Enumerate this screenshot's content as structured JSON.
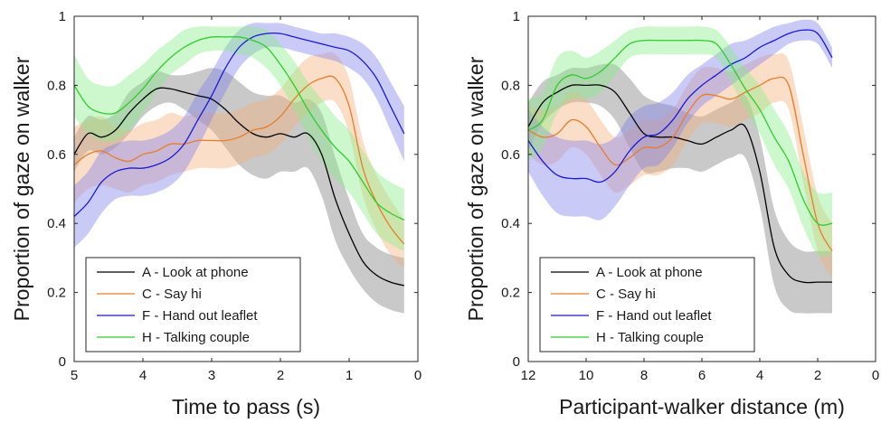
{
  "chart_data": [
    {
      "type": "line",
      "xlabel": "Time to pass (s)",
      "ylabel": "Proportion of gaze on walker",
      "xlim": [
        5,
        0
      ],
      "ylim": [
        0,
        1
      ],
      "x_reversed": true,
      "xticks": [
        5,
        4,
        3,
        2,
        1,
        0
      ],
      "yticks": [
        0,
        0.2,
        0.4,
        0.6,
        0.8,
        1
      ],
      "xtick_labels": [
        "5",
        "4",
        "3",
        "2",
        "1",
        "0"
      ],
      "ytick_labels": [
        "0",
        "0.2",
        "0.4",
        "0.6",
        "0.8",
        "1"
      ],
      "grid": false,
      "legend_position": "bottom-left",
      "series": [
        {
          "name": "A - Look at phone",
          "color": "#000000",
          "band_color": "#7f7f7f",
          "x": [
            5,
            4.8,
            4.6,
            4.4,
            4.2,
            4.0,
            3.8,
            3.6,
            3.4,
            3.2,
            3.0,
            2.8,
            2.6,
            2.4,
            2.2,
            2.0,
            1.8,
            1.6,
            1.4,
            1.2,
            1.0,
            0.8,
            0.6,
            0.4,
            0.2
          ],
          "values": [
            0.6,
            0.66,
            0.65,
            0.67,
            0.72,
            0.76,
            0.79,
            0.79,
            0.78,
            0.77,
            0.76,
            0.73,
            0.69,
            0.66,
            0.65,
            0.66,
            0.65,
            0.66,
            0.6,
            0.47,
            0.37,
            0.29,
            0.25,
            0.23,
            0.22
          ],
          "lower": [
            0.55,
            0.61,
            0.6,
            0.62,
            0.66,
            0.71,
            0.74,
            0.75,
            0.73,
            0.7,
            0.67,
            0.62,
            0.57,
            0.54,
            0.53,
            0.55,
            0.55,
            0.56,
            0.48,
            0.35,
            0.27,
            0.21,
            0.17,
            0.15,
            0.14
          ],
          "upper": [
            0.65,
            0.71,
            0.7,
            0.72,
            0.78,
            0.81,
            0.84,
            0.83,
            0.83,
            0.84,
            0.85,
            0.84,
            0.81,
            0.78,
            0.77,
            0.77,
            0.75,
            0.76,
            0.72,
            0.59,
            0.47,
            0.37,
            0.33,
            0.31,
            0.3
          ]
        },
        {
          "name": "C - Say hi",
          "color": "#e87d2a",
          "band_color": "#f5b07a",
          "x": [
            5,
            4.8,
            4.6,
            4.4,
            4.2,
            4.0,
            3.8,
            3.6,
            3.4,
            3.2,
            3.0,
            2.8,
            2.6,
            2.4,
            2.2,
            2.0,
            1.8,
            1.6,
            1.4,
            1.2,
            1.0,
            0.8,
            0.6,
            0.4,
            0.2
          ],
          "values": [
            0.57,
            0.6,
            0.61,
            0.59,
            0.58,
            0.6,
            0.61,
            0.63,
            0.63,
            0.64,
            0.64,
            0.64,
            0.65,
            0.67,
            0.68,
            0.71,
            0.76,
            0.8,
            0.82,
            0.82,
            0.74,
            0.56,
            0.46,
            0.39,
            0.34
          ],
          "lower": [
            0.46,
            0.5,
            0.51,
            0.5,
            0.49,
            0.51,
            0.52,
            0.54,
            0.55,
            0.56,
            0.56,
            0.56,
            0.57,
            0.59,
            0.6,
            0.63,
            0.68,
            0.72,
            0.75,
            0.75,
            0.66,
            0.48,
            0.38,
            0.31,
            0.27
          ],
          "upper": [
            0.68,
            0.7,
            0.71,
            0.68,
            0.67,
            0.69,
            0.7,
            0.72,
            0.71,
            0.72,
            0.72,
            0.72,
            0.73,
            0.75,
            0.76,
            0.79,
            0.84,
            0.88,
            0.89,
            0.89,
            0.82,
            0.64,
            0.54,
            0.47,
            0.41
          ]
        },
        {
          "name": "F - Hand out leaflet",
          "color": "#1a1ad4",
          "band_color": "#8080ec",
          "x": [
            5,
            4.8,
            4.6,
            4.4,
            4.2,
            4.0,
            3.8,
            3.6,
            3.4,
            3.2,
            3.0,
            2.8,
            2.6,
            2.4,
            2.2,
            2.0,
            1.8,
            1.6,
            1.4,
            1.2,
            1.0,
            0.8,
            0.6,
            0.4,
            0.2
          ],
          "values": [
            0.42,
            0.46,
            0.52,
            0.55,
            0.56,
            0.56,
            0.57,
            0.59,
            0.63,
            0.7,
            0.77,
            0.85,
            0.91,
            0.94,
            0.95,
            0.95,
            0.94,
            0.93,
            0.92,
            0.91,
            0.9,
            0.87,
            0.82,
            0.74,
            0.66
          ],
          "lower": [
            0.33,
            0.37,
            0.43,
            0.47,
            0.48,
            0.48,
            0.49,
            0.51,
            0.55,
            0.62,
            0.7,
            0.78,
            0.85,
            0.89,
            0.91,
            0.91,
            0.9,
            0.89,
            0.88,
            0.87,
            0.85,
            0.82,
            0.76,
            0.67,
            0.58
          ],
          "upper": [
            0.51,
            0.55,
            0.61,
            0.63,
            0.64,
            0.64,
            0.65,
            0.67,
            0.71,
            0.78,
            0.84,
            0.91,
            0.96,
            0.98,
            0.98,
            0.98,
            0.97,
            0.96,
            0.95,
            0.95,
            0.94,
            0.92,
            0.88,
            0.81,
            0.74
          ]
        },
        {
          "name": "H - Talking couple",
          "color": "#2ecc2e",
          "band_color": "#88ee88",
          "x": [
            5,
            4.8,
            4.6,
            4.4,
            4.2,
            4.0,
            3.8,
            3.6,
            3.4,
            3.2,
            3.0,
            2.8,
            2.6,
            2.4,
            2.2,
            2.0,
            1.8,
            1.6,
            1.4,
            1.2,
            1.0,
            0.8,
            0.6,
            0.4,
            0.2
          ],
          "values": [
            0.8,
            0.74,
            0.72,
            0.72,
            0.75,
            0.79,
            0.84,
            0.88,
            0.91,
            0.93,
            0.94,
            0.94,
            0.94,
            0.93,
            0.91,
            0.86,
            0.8,
            0.73,
            0.67,
            0.62,
            0.58,
            0.52,
            0.46,
            0.43,
            0.41
          ],
          "lower": [
            0.71,
            0.66,
            0.64,
            0.64,
            0.67,
            0.72,
            0.78,
            0.83,
            0.86,
            0.89,
            0.9,
            0.9,
            0.89,
            0.88,
            0.85,
            0.8,
            0.73,
            0.65,
            0.58,
            0.53,
            0.49,
            0.43,
            0.37,
            0.34,
            0.32
          ],
          "upper": [
            0.89,
            0.82,
            0.8,
            0.8,
            0.83,
            0.86,
            0.9,
            0.93,
            0.96,
            0.97,
            0.97,
            0.97,
            0.97,
            0.97,
            0.96,
            0.92,
            0.87,
            0.81,
            0.76,
            0.71,
            0.67,
            0.61,
            0.55,
            0.52,
            0.5
          ]
        }
      ]
    },
    {
      "type": "line",
      "xlabel": "Participant-walker distance (m)",
      "ylabel": "Proportion of gaze on walker",
      "xlim": [
        12,
        0
      ],
      "ylim": [
        0,
        1
      ],
      "x_reversed": true,
      "xticks": [
        12,
        10,
        8,
        6,
        4,
        2,
        0
      ],
      "yticks": [
        0,
        0.2,
        0.4,
        0.6,
        0.8,
        1
      ],
      "xtick_labels": [
        "12",
        "10",
        "8",
        "6",
        "4",
        "2",
        "0"
      ],
      "ytick_labels": [
        "0",
        "0.2",
        "0.4",
        "0.6",
        "0.8",
        "1"
      ],
      "grid": false,
      "legend_position": "bottom-left",
      "series": [
        {
          "name": "A - Look at phone",
          "color": "#000000",
          "band_color": "#7f7f7f",
          "x": [
            12,
            11.5,
            11,
            10.5,
            10,
            9.5,
            9,
            8.5,
            8,
            7.5,
            7,
            6.5,
            6,
            5.5,
            5,
            4.5,
            4,
            3.5,
            3,
            2.5,
            2,
            1.5
          ],
          "values": [
            0.68,
            0.75,
            0.78,
            0.8,
            0.8,
            0.8,
            0.78,
            0.72,
            0.66,
            0.65,
            0.65,
            0.64,
            0.63,
            0.65,
            0.67,
            0.68,
            0.55,
            0.33,
            0.25,
            0.23,
            0.23,
            0.23
          ],
          "lower": [
            0.61,
            0.69,
            0.73,
            0.75,
            0.75,
            0.74,
            0.7,
            0.62,
            0.55,
            0.55,
            0.56,
            0.56,
            0.55,
            0.57,
            0.59,
            0.59,
            0.45,
            0.22,
            0.15,
            0.14,
            0.14,
            0.14
          ],
          "upper": [
            0.75,
            0.81,
            0.83,
            0.85,
            0.85,
            0.86,
            0.86,
            0.82,
            0.77,
            0.75,
            0.74,
            0.72,
            0.71,
            0.73,
            0.75,
            0.77,
            0.65,
            0.44,
            0.35,
            0.32,
            0.32,
            0.32
          ]
        },
        {
          "name": "C - Say hi",
          "color": "#e87d2a",
          "band_color": "#f5b07a",
          "x": [
            12,
            11.5,
            11,
            10.5,
            10,
            9.5,
            9,
            8.5,
            8,
            7.5,
            7,
            6.5,
            6,
            5.5,
            5,
            4.5,
            4,
            3.5,
            3,
            2.5,
            2,
            1.5
          ],
          "values": [
            0.67,
            0.65,
            0.66,
            0.7,
            0.68,
            0.62,
            0.57,
            0.59,
            0.62,
            0.62,
            0.65,
            0.72,
            0.77,
            0.77,
            0.76,
            0.78,
            0.8,
            0.82,
            0.8,
            0.6,
            0.4,
            0.32
          ],
          "lower": [
            0.6,
            0.57,
            0.58,
            0.62,
            0.6,
            0.54,
            0.49,
            0.51,
            0.54,
            0.54,
            0.57,
            0.64,
            0.69,
            0.69,
            0.68,
            0.7,
            0.72,
            0.75,
            0.73,
            0.52,
            0.32,
            0.24
          ],
          "upper": [
            0.74,
            0.73,
            0.74,
            0.78,
            0.76,
            0.7,
            0.65,
            0.67,
            0.7,
            0.7,
            0.73,
            0.8,
            0.85,
            0.85,
            0.84,
            0.86,
            0.88,
            0.89,
            0.87,
            0.68,
            0.48,
            0.4
          ]
        },
        {
          "name": "F - Hand out leaflet",
          "color": "#1a1ad4",
          "band_color": "#8080ec",
          "x": [
            12,
            11.5,
            11,
            10.5,
            10,
            9.5,
            9,
            8.5,
            8,
            7.5,
            7,
            6.5,
            6,
            5.5,
            5,
            4.5,
            4,
            3.5,
            3,
            2.5,
            2,
            1.5
          ],
          "values": [
            0.64,
            0.58,
            0.54,
            0.53,
            0.53,
            0.52,
            0.55,
            0.61,
            0.65,
            0.66,
            0.7,
            0.76,
            0.8,
            0.83,
            0.86,
            0.88,
            0.91,
            0.93,
            0.95,
            0.96,
            0.95,
            0.88
          ],
          "lower": [
            0.55,
            0.48,
            0.43,
            0.42,
            0.42,
            0.41,
            0.45,
            0.51,
            0.56,
            0.57,
            0.62,
            0.69,
            0.74,
            0.77,
            0.8,
            0.83,
            0.86,
            0.89,
            0.92,
            0.93,
            0.92,
            0.85
          ],
          "upper": [
            0.73,
            0.68,
            0.65,
            0.64,
            0.64,
            0.63,
            0.65,
            0.71,
            0.74,
            0.75,
            0.78,
            0.83,
            0.86,
            0.89,
            0.92,
            0.93,
            0.95,
            0.97,
            0.98,
            0.99,
            0.98,
            0.91
          ]
        },
        {
          "name": "H - Talking couple",
          "color": "#2ecc2e",
          "band_color": "#88ee88",
          "x": [
            12,
            11.5,
            11,
            10.5,
            10,
            9.5,
            9,
            8.5,
            8,
            7.5,
            7,
            6.5,
            6,
            5.5,
            5,
            4.5,
            4,
            3.5,
            3,
            2.5,
            2,
            1.5
          ],
          "values": [
            0.67,
            0.7,
            0.8,
            0.83,
            0.82,
            0.84,
            0.88,
            0.92,
            0.93,
            0.93,
            0.93,
            0.93,
            0.93,
            0.92,
            0.86,
            0.79,
            0.73,
            0.65,
            0.58,
            0.47,
            0.4,
            0.4
          ],
          "lower": [
            0.58,
            0.62,
            0.72,
            0.76,
            0.76,
            0.78,
            0.83,
            0.88,
            0.89,
            0.89,
            0.89,
            0.89,
            0.89,
            0.88,
            0.81,
            0.73,
            0.66,
            0.57,
            0.5,
            0.39,
            0.31,
            0.31
          ],
          "upper": [
            0.76,
            0.78,
            0.88,
            0.9,
            0.88,
            0.9,
            0.93,
            0.96,
            0.97,
            0.97,
            0.97,
            0.97,
            0.97,
            0.96,
            0.91,
            0.85,
            0.8,
            0.73,
            0.66,
            0.55,
            0.49,
            0.49
          ]
        }
      ]
    }
  ]
}
